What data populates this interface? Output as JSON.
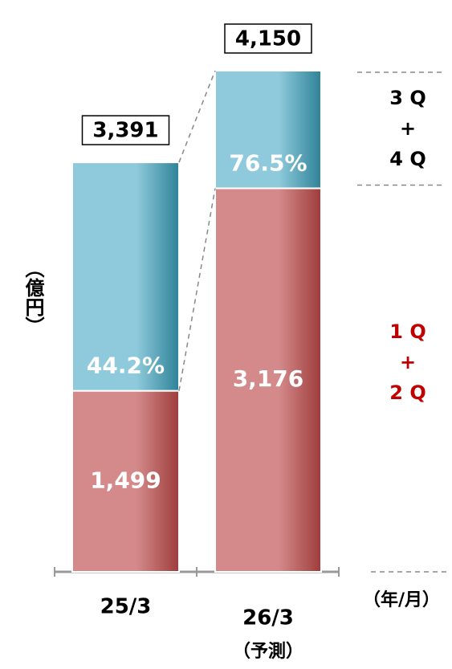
{
  "chart_data": {
    "type": "stacked-bar",
    "categories": [
      "25/3",
      "26/3"
    ],
    "category_notes": [
      null,
      "（予測）"
    ],
    "y_label": "（億円）",
    "x_label": "（年/月）",
    "ylim": [
      0,
      4150
    ],
    "series": [
      {
        "name": [
          "1 Q",
          "+",
          "2 Q"
        ],
        "color": "#d48a8a",
        "dark": "#9e3c3c",
        "label_color": "#c00000",
        "values": [
          1499,
          3176
        ],
        "value_labels": [
          "1,499",
          "3,176"
        ]
      },
      {
        "name": [
          "3 Q",
          "+",
          "4 Q"
        ],
        "color": "#8ecadb",
        "dark": "#2f8299",
        "label_color": "#000000",
        "values": [
          1892,
          974
        ]
      }
    ],
    "totals": [
      3391,
      4150
    ],
    "total_labels": [
      "3,391",
      "4,150"
    ],
    "shares": [
      44.2,
      76.5
    ],
    "share_labels": [
      "44.2%",
      "76.5%"
    ]
  }
}
